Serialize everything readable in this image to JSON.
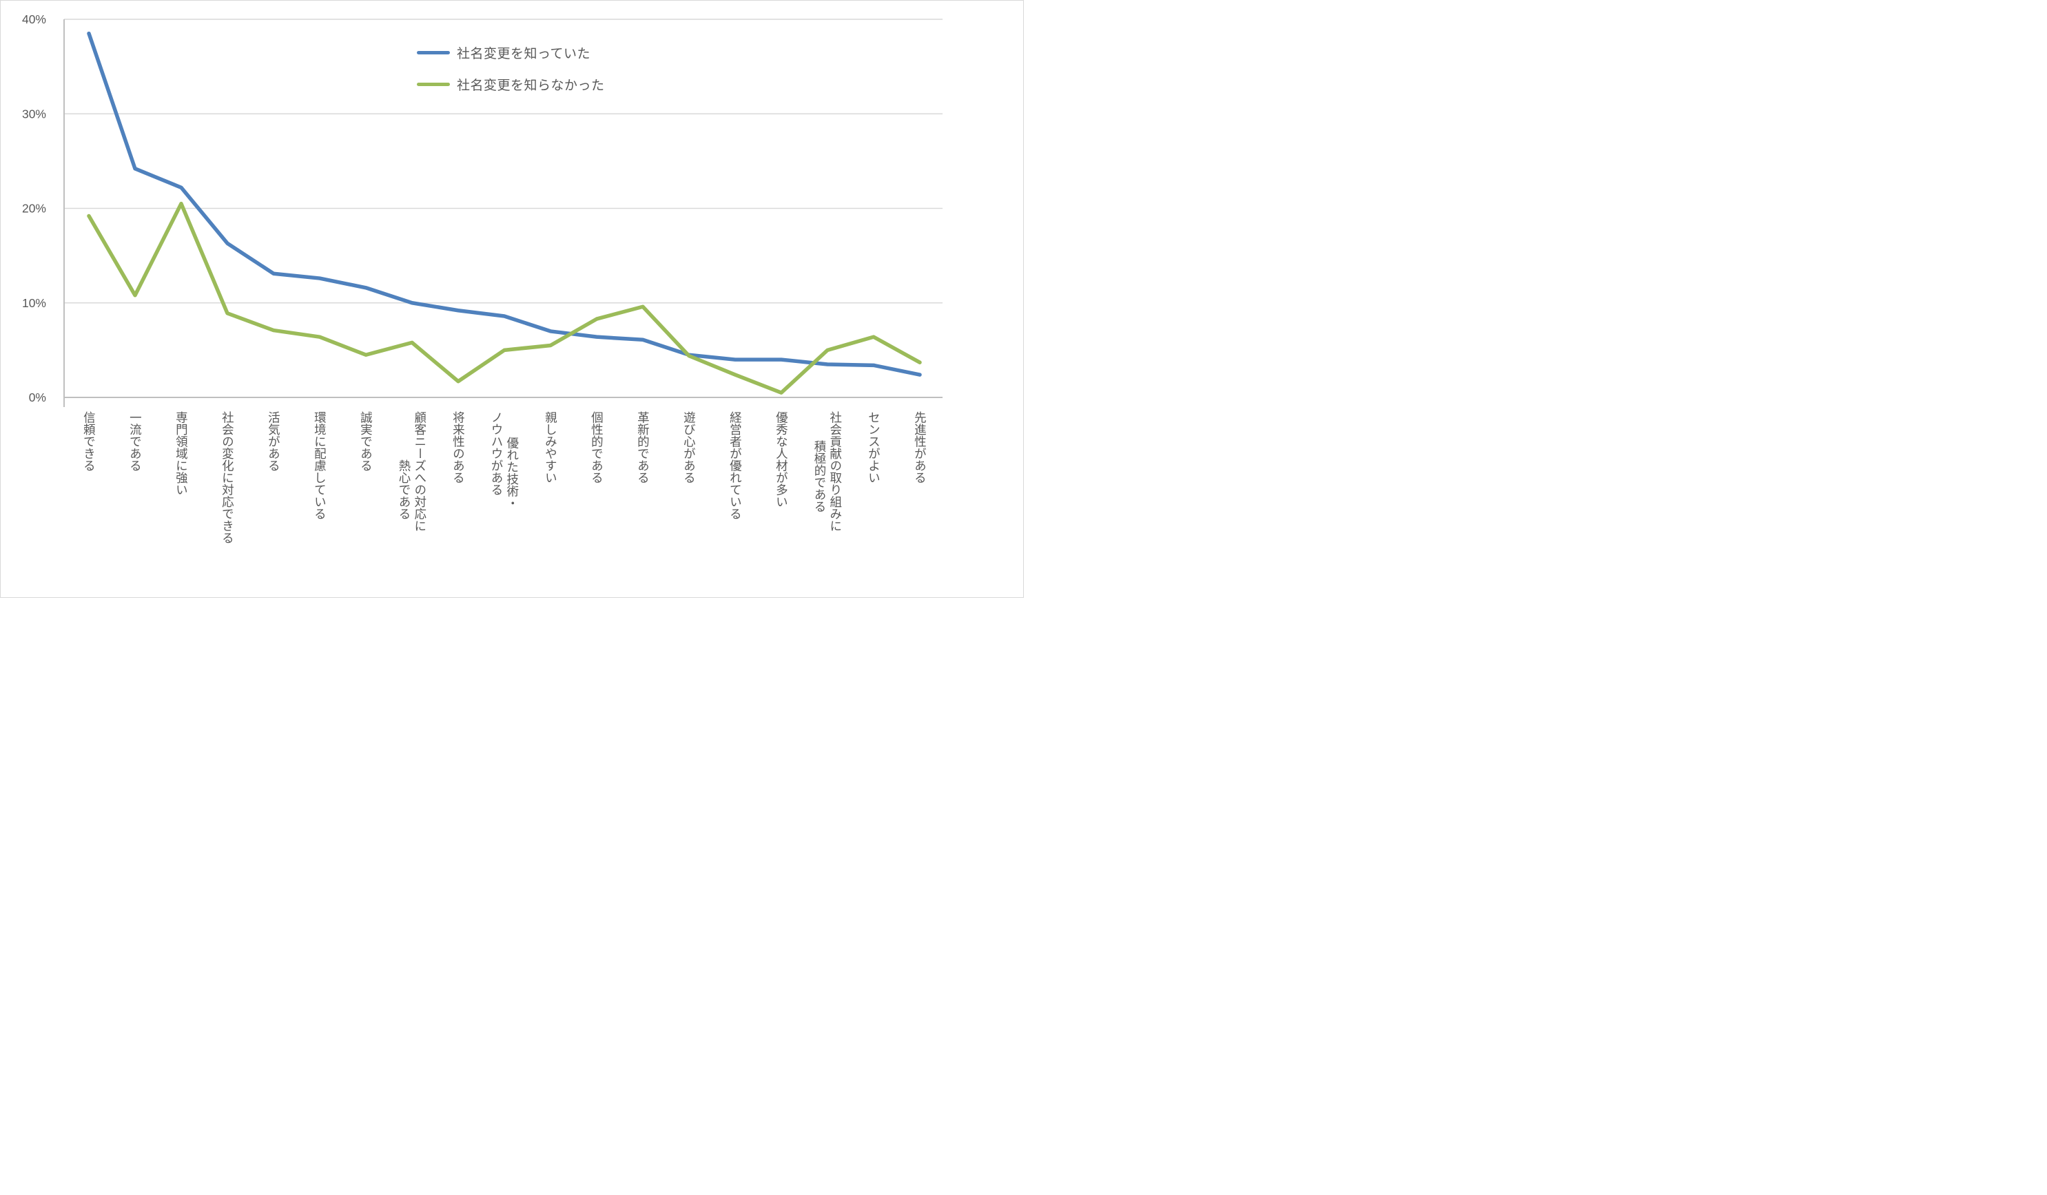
{
  "chart_data": {
    "type": "line",
    "categories": [
      "信頼できる",
      "一流である",
      "専門領域に強い",
      "社会の変化に対応できる",
      "活気がある",
      "環境に配慮している",
      "誠実である",
      "顧客ニーズへの対応に\n熱心である",
      "将来性のある",
      "優れた技術・\nノウハウがある",
      "親しみやすい",
      "個性的である",
      "革新的である",
      "遊び心がある",
      "経営者が優れている",
      "優秀な人材が多い",
      "社会貢献の取り組みに\n積極的である",
      "センスがよい",
      "先進性がある"
    ],
    "series": [
      {
        "name": "社名変更を知っていた",
        "color": "#4F81BD",
        "values": [
          38.5,
          24.2,
          22.2,
          16.3,
          13.1,
          12.6,
          11.6,
          10.0,
          9.2,
          8.6,
          7.0,
          6.4,
          6.1,
          4.5,
          4.0,
          4.0,
          3.5,
          3.4,
          2.4
        ]
      },
      {
        "name": "社名変更を知らなかった",
        "color": "#9BBB59",
        "values": [
          19.2,
          10.8,
          20.5,
          8.9,
          7.1,
          6.4,
          4.5,
          5.8,
          1.7,
          5.0,
          5.5,
          8.3,
          9.6,
          4.4,
          2.4,
          0.5,
          5.0,
          6.4,
          3.7
        ]
      }
    ],
    "y_ticks": [
      "40%",
      "30%",
      "20%",
      "10%",
      "0%"
    ],
    "ylim": [
      0,
      40
    ],
    "grid": true,
    "legend_position": "top-center",
    "xlabel": "",
    "ylabel": ""
  },
  "colors": {
    "gridline": "#D9D9D9",
    "axis": "#BFBFBF",
    "tick_text": "#595959",
    "background": "#FFFFFF",
    "series_knew": "#4F81BD",
    "series_did_not_know": "#9BBB59"
  }
}
